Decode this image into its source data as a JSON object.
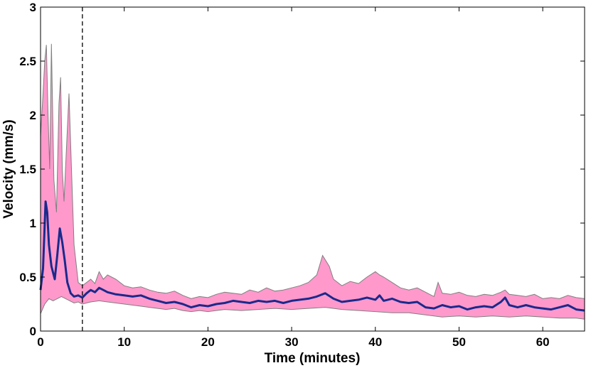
{
  "chart_data": {
    "type": "line",
    "title": "",
    "xlabel": "Time (minutes)",
    "ylabel": "Velocity (mm/s)",
    "xlim": [
      0,
      65
    ],
    "ylim": [
      0,
      3
    ],
    "xticks": [
      0,
      10,
      20,
      30,
      40,
      50,
      60
    ],
    "yticks": [
      0,
      0.5,
      1,
      1.5,
      2,
      2.5,
      3
    ],
    "ytick_labels": [
      "0",
      "0.5",
      "1",
      "1.5",
      "2",
      "2.5",
      "3"
    ],
    "grid": false,
    "vline_x": 5,
    "colors": {
      "mean": "#1a2a8c",
      "band_fill": "#ff99cc",
      "band_edge": "#7f7f7f",
      "vline": "#000000"
    },
    "series": [
      {
        "kind": "mean",
        "x": [
          0,
          0.3,
          0.6,
          0.8,
          1.0,
          1.3,
          1.7,
          2.0,
          2.3,
          2.6,
          2.9,
          3.2,
          3.6,
          4.0,
          4.5,
          5.0,
          5.5,
          6.0,
          6.5,
          7.0,
          7.5,
          8.0,
          9.0,
          10.0,
          11.0,
          12.0,
          13.0,
          14.0,
          15.0,
          16.0,
          17.0,
          18.0,
          19.0,
          20.0,
          21.0,
          22.0,
          23.0,
          24.0,
          25.0,
          26.0,
          27.0,
          28.0,
          29.0,
          30.0,
          31.0,
          32.0,
          33.0,
          34.0,
          35.0,
          36.0,
          37.0,
          38.0,
          39.0,
          40.0,
          40.5,
          41.0,
          42.0,
          43.0,
          44.0,
          45.0,
          46.0,
          47.0,
          48.0,
          49.0,
          50.0,
          51.0,
          52.0,
          53.0,
          54.0,
          55.0,
          55.5,
          56.0,
          57.0,
          58.0,
          59.0,
          60.0,
          61.0,
          62.0,
          63.0,
          64.0,
          65.0
        ],
        "y": [
          0.38,
          0.58,
          1.2,
          1.1,
          0.8,
          0.6,
          0.48,
          0.7,
          0.95,
          0.82,
          0.65,
          0.45,
          0.35,
          0.32,
          0.33,
          0.31,
          0.35,
          0.38,
          0.36,
          0.4,
          0.38,
          0.36,
          0.34,
          0.33,
          0.32,
          0.33,
          0.3,
          0.28,
          0.26,
          0.27,
          0.25,
          0.22,
          0.24,
          0.23,
          0.25,
          0.26,
          0.28,
          0.27,
          0.26,
          0.28,
          0.27,
          0.28,
          0.26,
          0.28,
          0.29,
          0.3,
          0.32,
          0.35,
          0.3,
          0.27,
          0.28,
          0.29,
          0.31,
          0.29,
          0.33,
          0.28,
          0.3,
          0.27,
          0.26,
          0.27,
          0.22,
          0.21,
          0.24,
          0.22,
          0.23,
          0.2,
          0.22,
          0.23,
          0.22,
          0.27,
          0.31,
          0.24,
          0.22,
          0.24,
          0.22,
          0.21,
          0.2,
          0.22,
          0.24,
          0.2,
          0.19
        ]
      },
      {
        "kind": "band_upper",
        "x": [
          0,
          0.3,
          0.5,
          0.7,
          0.9,
          1.1,
          1.3,
          1.6,
          1.9,
          2.2,
          2.4,
          2.6,
          2.8,
          3.1,
          3.4,
          3.7,
          4.0,
          4.5,
          5.0,
          5.5,
          6.0,
          6.5,
          7.0,
          7.5,
          8.0,
          9.0,
          10.0,
          11.0,
          12.0,
          13.0,
          14.0,
          15.0,
          16.0,
          17.0,
          18.0,
          19.0,
          20.0,
          21.0,
          22.0,
          23.0,
          24.0,
          25.0,
          26.0,
          27.0,
          28.0,
          29.0,
          30.0,
          31.0,
          32.0,
          33.0,
          33.7,
          34.5,
          35.0,
          36.0,
          37.0,
          38.0,
          39.0,
          40.0,
          40.5,
          41.0,
          42.0,
          43.0,
          44.0,
          45.0,
          46.0,
          47.0,
          47.5,
          48.0,
          49.0,
          50.0,
          51.0,
          52.0,
          53.0,
          54.0,
          55.0,
          55.5,
          56.0,
          57.0,
          58.0,
          59.0,
          60.0,
          61.0,
          62.0,
          63.0,
          64.0,
          65.0
        ],
        "y": [
          1.8,
          2.2,
          2.5,
          2.65,
          2.0,
          1.5,
          2.66,
          1.4,
          1.1,
          2.1,
          2.35,
          1.5,
          1.2,
          1.7,
          2.2,
          1.5,
          0.8,
          0.45,
          0.42,
          0.45,
          0.48,
          0.44,
          0.55,
          0.48,
          0.52,
          0.48,
          0.42,
          0.4,
          0.41,
          0.38,
          0.36,
          0.35,
          0.37,
          0.33,
          0.3,
          0.32,
          0.31,
          0.34,
          0.36,
          0.35,
          0.34,
          0.38,
          0.36,
          0.4,
          0.37,
          0.38,
          0.4,
          0.42,
          0.45,
          0.52,
          0.7,
          0.6,
          0.48,
          0.42,
          0.46,
          0.44,
          0.5,
          0.55,
          0.52,
          0.5,
          0.45,
          0.4,
          0.38,
          0.4,
          0.36,
          0.32,
          0.45,
          0.35,
          0.34,
          0.36,
          0.33,
          0.32,
          0.34,
          0.33,
          0.36,
          0.38,
          0.34,
          0.33,
          0.32,
          0.34,
          0.3,
          0.31,
          0.3,
          0.33,
          0.31,
          0.3
        ]
      },
      {
        "kind": "band_lower",
        "x": [
          0,
          0.5,
          1.0,
          1.5,
          2.0,
          2.5,
          3.0,
          3.5,
          4.0,
          4.5,
          5.0,
          6.0,
          7.0,
          8.0,
          9.0,
          10.0,
          11.0,
          12.0,
          13.0,
          14.0,
          15.0,
          16.0,
          17.0,
          18.0,
          19.0,
          20.0,
          22.0,
          24.0,
          26.0,
          28.0,
          30.0,
          32.0,
          34.0,
          36.0,
          38.0,
          40.0,
          42.0,
          44.0,
          46.0,
          48.0,
          50.0,
          52.0,
          54.0,
          56.0,
          58.0,
          60.0,
          62.0,
          64.0,
          65.0
        ],
        "y": [
          0.16,
          0.25,
          0.3,
          0.28,
          0.3,
          0.32,
          0.3,
          0.28,
          0.26,
          0.27,
          0.25,
          0.27,
          0.28,
          0.27,
          0.26,
          0.25,
          0.24,
          0.23,
          0.22,
          0.21,
          0.2,
          0.21,
          0.19,
          0.18,
          0.19,
          0.18,
          0.2,
          0.19,
          0.2,
          0.21,
          0.2,
          0.21,
          0.22,
          0.2,
          0.19,
          0.18,
          0.17,
          0.17,
          0.15,
          0.13,
          0.14,
          0.13,
          0.14,
          0.13,
          0.14,
          0.13,
          0.12,
          0.12,
          0.11
        ]
      }
    ]
  }
}
